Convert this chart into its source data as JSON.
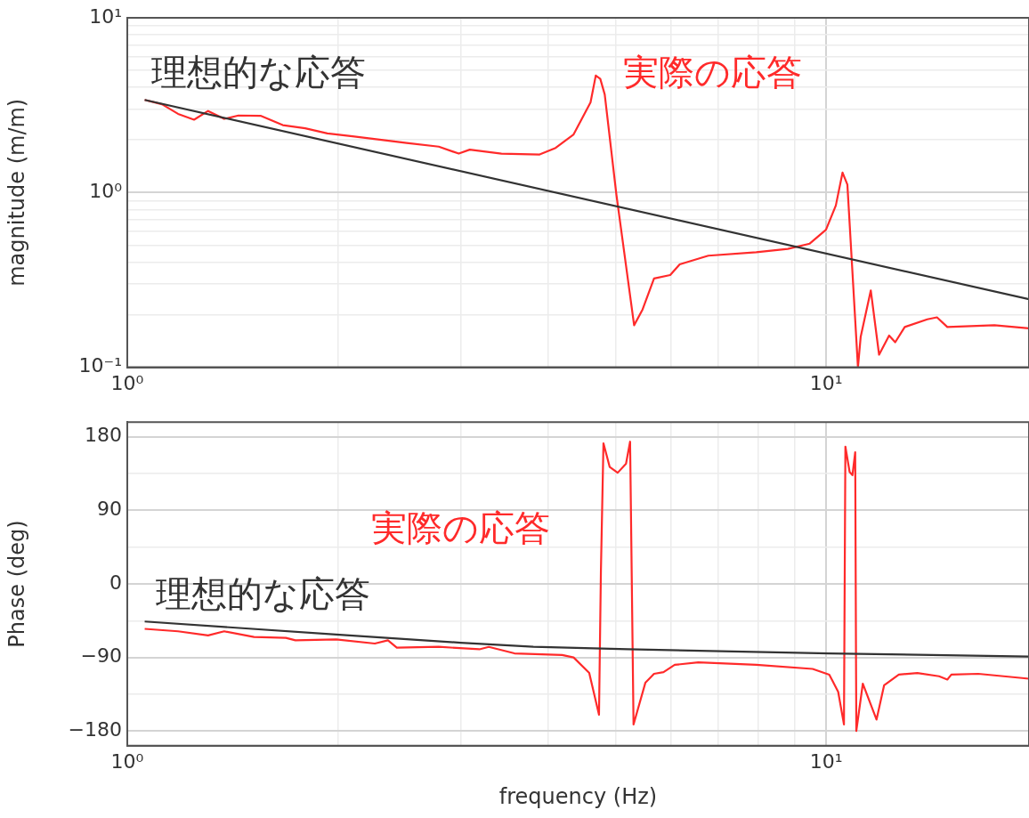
{
  "chart_data": [
    {
      "type": "line",
      "ylabel": "magnitude (m/m)",
      "log": "xy",
      "grid": true,
      "marker": "none",
      "line_style": "solid",
      "xlim": [
        1,
        19.5
      ],
      "xticks": [
        {
          "value": 1,
          "label": "10⁰"
        },
        {
          "value": 2,
          "label": null
        },
        {
          "value": 3,
          "label": null
        },
        {
          "value": 4,
          "label": null
        },
        {
          "value": 5,
          "label": null
        },
        {
          "value": 6,
          "label": null
        },
        {
          "value": 7,
          "label": null
        },
        {
          "value": 8,
          "label": null
        },
        {
          "value": 9,
          "label": null
        },
        {
          "value": 10,
          "label": "10¹"
        }
      ],
      "ylim": [
        0.1,
        10
      ],
      "yticks": [
        {
          "value": 0.1,
          "label": "10⁻¹"
        },
        {
          "value": 0.2,
          "label": null
        },
        {
          "value": 0.3,
          "label": null
        },
        {
          "value": 0.4,
          "label": null
        },
        {
          "value": 0.5,
          "label": null
        },
        {
          "value": 0.6,
          "label": null
        },
        {
          "value": 0.7,
          "label": null
        },
        {
          "value": 0.8,
          "label": null
        },
        {
          "value": 0.9,
          "label": null
        },
        {
          "value": 1,
          "label": "10⁰"
        },
        {
          "value": 2,
          "label": null
        },
        {
          "value": 3,
          "label": null
        },
        {
          "value": 4,
          "label": null
        },
        {
          "value": 5,
          "label": null
        },
        {
          "value": 6,
          "label": null
        },
        {
          "value": 7,
          "label": null
        },
        {
          "value": 8,
          "label": null
        },
        {
          "value": 9,
          "label": null
        },
        {
          "value": 10,
          "label": "10¹"
        }
      ],
      "series": [
        {
          "name": "理想的な応答",
          "color": "#333333",
          "x": [
            1.059,
            19.5
          ],
          "values": [
            3.39,
            0.245
          ]
        },
        {
          "name": "実際の応答",
          "color": "#ff2a2a",
          "x": [
            1.059,
            1.121,
            1.182,
            1.246,
            1.305,
            1.376,
            1.442,
            1.551,
            1.669,
            1.797,
            1.933,
            2.1,
            2.31,
            2.51,
            2.79,
            2.98,
            3.09,
            3.43,
            3.89,
            4.1,
            4.35,
            4.47,
            4.6,
            4.68,
            4.75,
            4.82,
            5.01,
            5.31,
            5.46,
            5.67,
            5.98,
            6.17,
            6.78,
            7.94,
            8.81,
            9.47,
            9.99,
            10.32,
            10.55,
            10.72,
            11.1,
            11.2,
            11.58,
            11.9,
            12.3,
            12.55,
            12.95,
            13.95,
            14.4,
            14.9,
            17.4,
            19.5
          ],
          "values": [
            3.39,
            3.2,
            2.82,
            2.61,
            2.93,
            2.64,
            2.76,
            2.75,
            2.43,
            2.33,
            2.18,
            2.1,
            2.0,
            1.92,
            1.83,
            1.67,
            1.76,
            1.67,
            1.65,
            1.8,
            2.15,
            2.64,
            3.28,
            4.67,
            4.47,
            3.64,
            0.966,
            0.174,
            0.214,
            0.322,
            0.337,
            0.388,
            0.435,
            0.455,
            0.476,
            0.51,
            0.612,
            0.843,
            1.3,
            1.11,
            0.1,
            0.149,
            0.275,
            0.118,
            0.152,
            0.139,
            0.17,
            0.188,
            0.193,
            0.17,
            0.174,
            0.167
          ]
        }
      ]
    },
    {
      "type": "line",
      "xlabel": "frequency (Hz)",
      "ylabel": "Phase (deg)",
      "log": "x",
      "grid": true,
      "marker": "none",
      "line_style": "solid",
      "xlim": [
        1,
        19.5
      ],
      "xticks": [
        {
          "value": 1,
          "label": "10⁰"
        },
        {
          "value": 2,
          "label": null
        },
        {
          "value": 3,
          "label": null
        },
        {
          "value": 4,
          "label": null
        },
        {
          "value": 5,
          "label": null
        },
        {
          "value": 6,
          "label": null
        },
        {
          "value": 7,
          "label": null
        },
        {
          "value": 8,
          "label": null
        },
        {
          "value": 9,
          "label": null
        },
        {
          "value": 10,
          "label": "10¹"
        }
      ],
      "ylim": [
        -198,
        198
      ],
      "yticks": [
        {
          "value": -180,
          "label": "−180"
        },
        {
          "value": -135,
          "label": null
        },
        {
          "value": -90,
          "label": "−90"
        },
        {
          "value": -45,
          "label": null
        },
        0,
        {
          "value": 45,
          "label": null
        },
        90,
        {
          "value": 135,
          "label": null
        },
        180
      ],
      "series": [
        {
          "name": "理想的な応答",
          "color": "#333333",
          "x": [
            1.059,
            1.99,
            3.0,
            3.81,
            5.2,
            10.1,
            19.5
          ],
          "values": [
            -46,
            -62,
            -72,
            -77,
            -80,
            -85,
            -89
          ]
        },
        {
          "name": "実際の応答",
          "color": "#ff2a2a",
          "x": [
            1.059,
            1.182,
            1.305,
            1.376,
            1.518,
            1.686,
            1.74,
            1.99,
            2.26,
            2.36,
            2.43,
            2.79,
            3.19,
            3.29,
            3.58,
            4.19,
            4.35,
            4.58,
            4.73,
            4.76,
            4.8,
            4.9,
            5.03,
            5.17,
            5.24,
            5.3,
            5.51,
            5.67,
            5.85,
            6.07,
            6.56,
            7.94,
            9.56,
            10.1,
            10.4,
            10.6,
            10.65,
            10.8,
            10.9,
            11.0,
            11.04,
            11.28,
            11.8,
            12.1,
            12.7,
            13.5,
            14.5,
            14.9,
            15.1,
            16.5,
            19.5
          ],
          "values": [
            -55,
            -58,
            -63,
            -58,
            -65,
            -66,
            -69,
            -68,
            -73,
            -69,
            -78,
            -77,
            -80,
            -77,
            -85,
            -87,
            -90,
            -109,
            -160,
            17,
            172,
            143,
            136,
            147,
            174,
            -172,
            -121,
            -110,
            -108,
            -99,
            -96,
            -99,
            -104,
            -111,
            -132,
            -172,
            168,
            137,
            133,
            161,
            -180,
            -122,
            -166,
            -124,
            -111,
            -109,
            -113,
            -117,
            -111,
            -110,
            -116
          ]
        }
      ]
    }
  ]
}
